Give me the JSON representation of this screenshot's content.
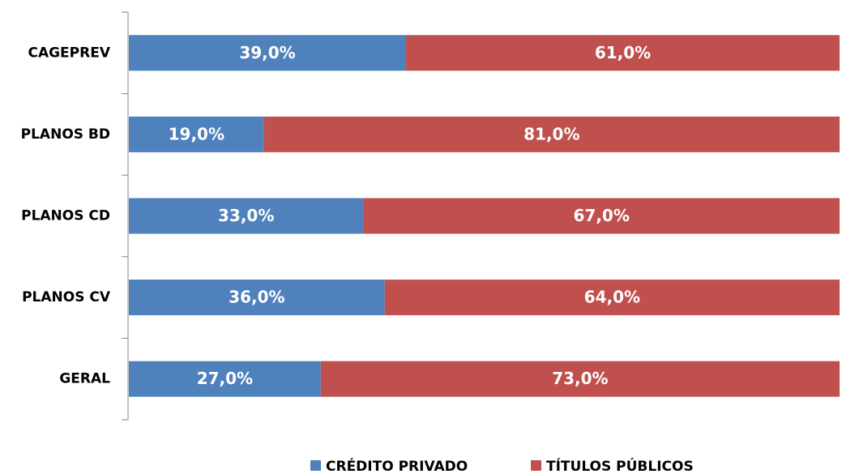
{
  "chart_data": {
    "type": "stacked_bar_horizontal",
    "categories": [
      "CAGEPREV",
      "PLANOS BD",
      "PLANOS CD",
      "PLANOS CV",
      "GERAL"
    ],
    "series": [
      {
        "name": "CRÉDITO PRIVADO",
        "color": "#4f81bd",
        "values": [
          39,
          19,
          33,
          36,
          27
        ],
        "value_labels": [
          "39,0%",
          "19,0%",
          "33,0%",
          "36,0%",
          "27,0%"
        ]
      },
      {
        "name": "TÍTULOS PÚBLICOS",
        "color": "#c0504d",
        "values": [
          61,
          81,
          67,
          64,
          73
        ],
        "value_labels": [
          "61,0%",
          "81,0%",
          "67,0%",
          "64,0%",
          "73,0%"
        ]
      }
    ],
    "legend": "bottom"
  }
}
